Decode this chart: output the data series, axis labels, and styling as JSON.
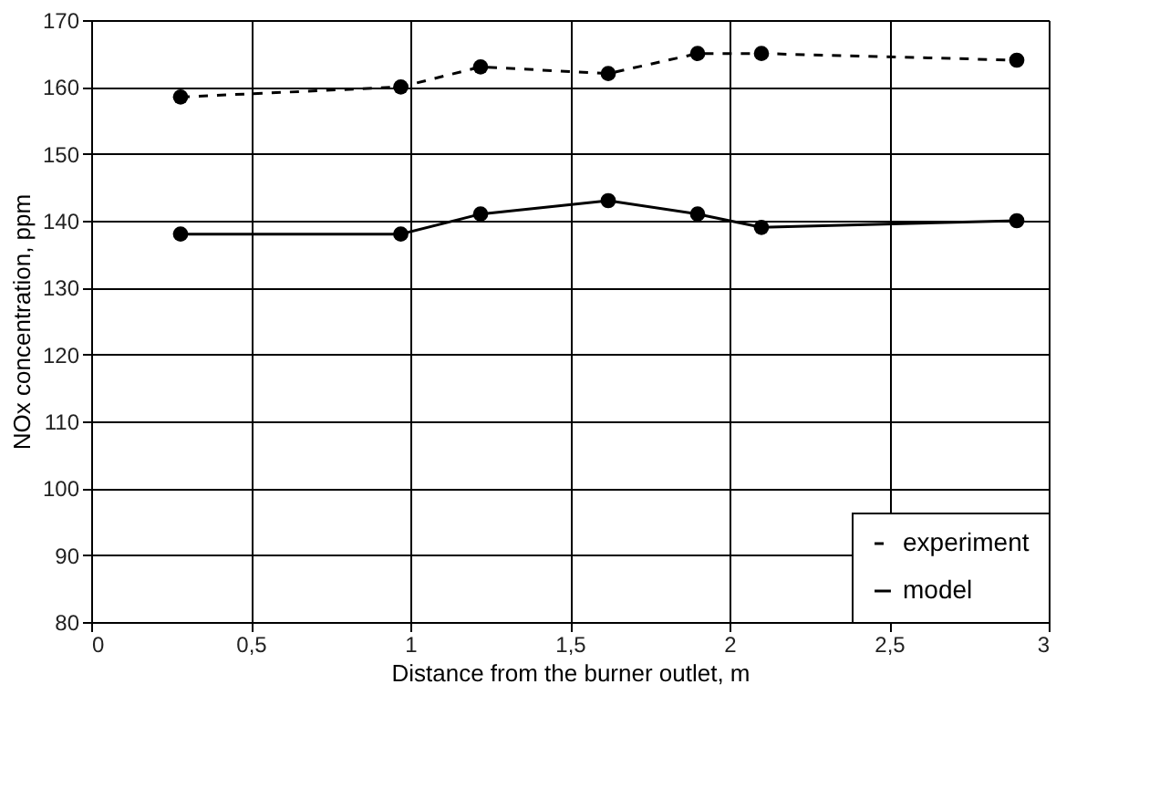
{
  "chart_data": {
    "type": "line",
    "xlabel": "Distance from the burner outlet, m",
    "ylabel": "NOx concentration, ppm",
    "xlim": [
      0,
      3
    ],
    "xticks": [
      0,
      {
        "value": 0.5,
        "label": "0,5"
      },
      1,
      {
        "value": 1.5,
        "label": "1,5"
      },
      2,
      {
        "value": 2.5,
        "label": "2,5"
      },
      3
    ],
    "ylim": [
      80,
      170
    ],
    "yticks": [
      80,
      90,
      100,
      110,
      120,
      130,
      140,
      150,
      160,
      170
    ],
    "grid": true,
    "legend": "bottom right",
    "marker": "circle",
    "series": [
      {
        "name": "experiment",
        "color": "#000000",
        "line_style": "dashed",
        "x": [
          0.28,
          0.97,
          1.22,
          1.62,
          1.9,
          2.1,
          2.9
        ],
        "values": [
          158.5,
          160,
          163,
          162,
          165,
          165,
          164
        ]
      },
      {
        "name": "model",
        "color": "#000000",
        "line_style": "solid",
        "x": [
          0.28,
          0.97,
          1.22,
          1.62,
          1.9,
          2.1,
          2.9
        ],
        "values": [
          138,
          138,
          141,
          143,
          141,
          139,
          140
        ]
      }
    ]
  }
}
